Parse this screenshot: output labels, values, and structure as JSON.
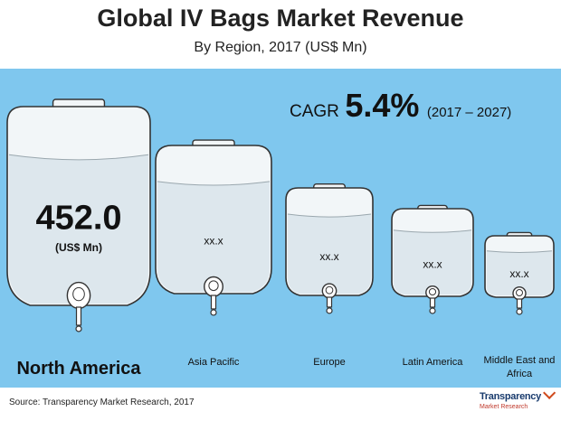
{
  "chart_data": {
    "type": "bar",
    "title": "Global IV Bags Market Revenue",
    "subtitle": "By Region, 2017 (US$ Mn)",
    "categories": [
      "North America",
      "Asia Pacific",
      "Europe",
      "Latin America",
      "Middle East and Africa"
    ],
    "value_labels": [
      "452.0",
      "xx.x",
      "xx.x",
      "xx.x",
      "xx.x"
    ],
    "unit_label": "(US$ Mn)",
    "legend": "none",
    "grid": false
  },
  "cagr": {
    "label": "CAGR",
    "value": "5.4%",
    "period": "(2017 – 2027)"
  },
  "source": "Source: Transparency  Market Research, 2017",
  "logo": {
    "line1": "Transparency",
    "line2": "Market Research"
  },
  "colors": {
    "panel": "#7fc7ee",
    "bag_fill": "#f2f6f8",
    "liquid": "#dde7ed",
    "outline": "#333333"
  }
}
